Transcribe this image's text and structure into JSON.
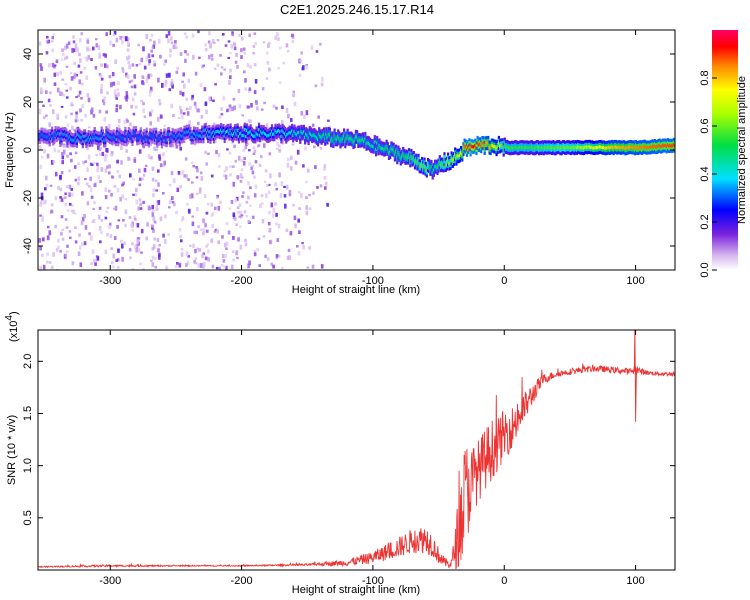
{
  "title": "C2E1.2025.246.15.17.R14",
  "colorbar": {
    "label": "Normalized spectral amplitude",
    "ticks": [
      "0.0",
      "0.2",
      "0.4",
      "0.6",
      "0.8"
    ],
    "tick_values": [
      0.0,
      0.2,
      0.4,
      0.6,
      0.8
    ],
    "range": [
      0,
      1
    ]
  },
  "chart_data": [
    {
      "type": "heatmap",
      "panel": "spectrogram",
      "xlabel": "Height of straight line (km)",
      "ylabel": "Frequency (Hz)",
      "xlim": [
        -355,
        130
      ],
      "ylim": [
        -50,
        50
      ],
      "xticks": [
        -300,
        -200,
        -100,
        0,
        100
      ],
      "xtick_labels": [
        "-300",
        "-200",
        "-100",
        "0",
        "100"
      ],
      "yticks": [
        -40,
        -20,
        0,
        20,
        40
      ],
      "ytick_labels": [
        "-40",
        "-20",
        "0",
        "20",
        "40"
      ],
      "ridge": {
        "description": "dominant frequency track",
        "x": [
          -355,
          -320,
          -290,
          -260,
          -230,
          -200,
          -170,
          -150,
          -130,
          -110,
          -100,
          -90,
          -80,
          -70,
          -60,
          -55,
          -50,
          -45,
          -40,
          -35,
          -30,
          -25,
          -20,
          -10,
          0,
          20,
          50,
          80,
          100,
          130
        ],
        "y": [
          6,
          5,
          6,
          5,
          7,
          7,
          7,
          6,
          5,
          4,
          2,
          0,
          -2,
          -4,
          -7,
          -9,
          -6,
          -5,
          -4,
          -2,
          1,
          1,
          2,
          2,
          1,
          1,
          1,
          1,
          1,
          2
        ],
        "amplitude": [
          0.3,
          0.35,
          0.3,
          0.3,
          0.35,
          0.4,
          0.4,
          0.45,
          0.5,
          0.5,
          0.45,
          0.5,
          0.5,
          0.55,
          0.6,
          0.45,
          0.55,
          0.6,
          0.65,
          0.7,
          0.9,
          0.95,
          0.9,
          0.8,
          0.55,
          0.55,
          0.6,
          0.8,
          0.85,
          0.9
        ]
      },
      "noise_region_x": [
        -355,
        -140
      ]
    },
    {
      "type": "line",
      "panel": "snr",
      "xlabel": "Height of straight line (km)",
      "ylabel": "SNR (10 * v/v)",
      "yscale_label": "(x10",
      "yscale_exp": "4",
      "yscale_close": ")",
      "xlim": [
        -355,
        130
      ],
      "ylim": [
        0,
        2.3
      ],
      "xticks": [
        -300,
        -200,
        -100,
        0,
        100
      ],
      "xtick_labels": [
        "-300",
        "-200",
        "-100",
        "0",
        "100"
      ],
      "yticks": [
        0.5,
        1.0,
        1.5,
        2.0
      ],
      "ytick_labels": [
        "0.5",
        "1.0",
        "1.5",
        "2.0"
      ],
      "series": [
        {
          "name": "SNR",
          "color": "#ee3333",
          "x": [
            -355,
            -300,
            -250,
            -200,
            -150,
            -120,
            -100,
            -90,
            -80,
            -70,
            -60,
            -55,
            -50,
            -45,
            -40,
            -35,
            -30,
            -25,
            -20,
            -15,
            -10,
            -5,
            0,
            5,
            10,
            15,
            20,
            25,
            30,
            40,
            50,
            60,
            70,
            80,
            90,
            95,
            100,
            105,
            110,
            120,
            130
          ],
          "y": [
            0.03,
            0.04,
            0.04,
            0.04,
            0.05,
            0.07,
            0.12,
            0.17,
            0.22,
            0.28,
            0.3,
            0.25,
            0.14,
            0.07,
            0.06,
            0.35,
            0.7,
            0.85,
            0.95,
            1.05,
            1.15,
            1.2,
            1.3,
            1.35,
            1.45,
            1.55,
            1.65,
            1.75,
            1.83,
            1.88,
            1.9,
            1.92,
            1.93,
            1.92,
            1.91,
            1.9,
            1.92,
            1.9,
            1.89,
            1.88,
            1.88
          ],
          "spread": [
            0.005,
            0.01,
            0.005,
            0.005,
            0.01,
            0.03,
            0.06,
            0.08,
            0.1,
            0.12,
            0.14,
            0.12,
            0.08,
            0.04,
            0.06,
            0.35,
            0.55,
            0.35,
            0.3,
            0.3,
            0.3,
            0.25,
            0.25,
            0.2,
            0.2,
            0.15,
            0.12,
            0.08,
            0.05,
            0.03,
            0.03,
            0.03,
            0.03,
            0.03,
            0.03,
            0.03,
            0.05,
            0.03,
            0.02,
            0.02,
            0.02
          ]
        }
      ]
    }
  ]
}
